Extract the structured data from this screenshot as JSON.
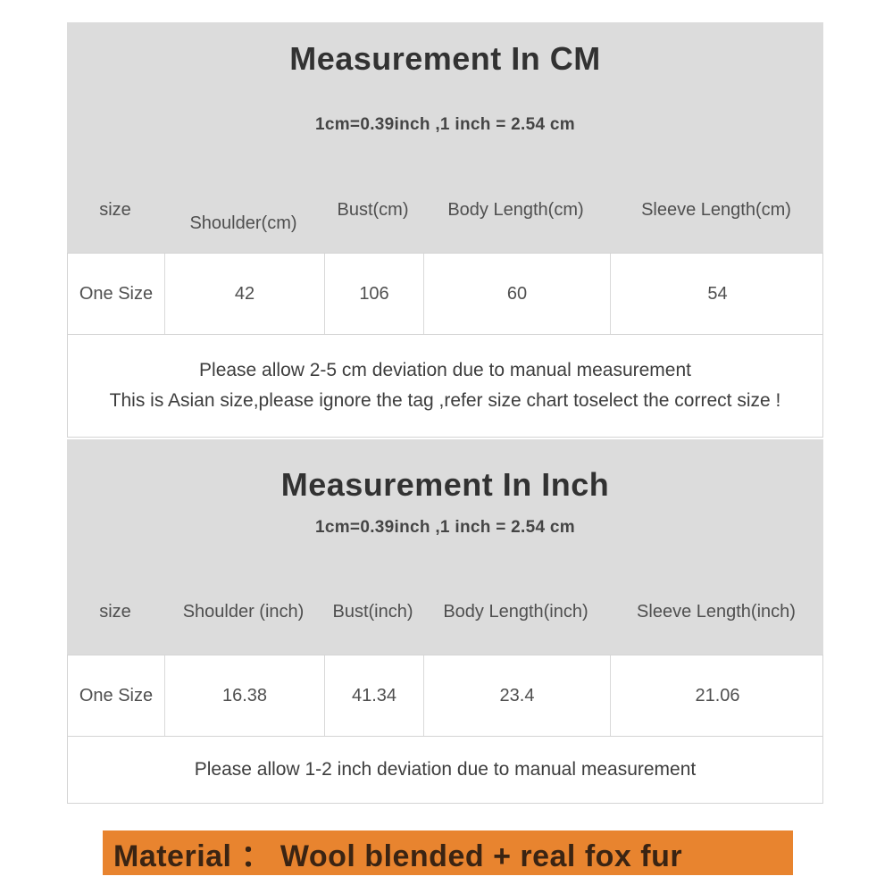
{
  "colors": {
    "section_background": "#dcdcdc",
    "table_border": "#d4d4d4",
    "title_text": "#323232",
    "body_text": "#4f4f4f",
    "material_background": "#e8842f",
    "material_text": "#3a2413"
  },
  "cm_section": {
    "title": "Measurement In CM",
    "subtitle": "1cm=0.39inch ,1 inch = 2.54 cm",
    "table": {
      "headers": [
        "size",
        "Shoulder(cm)",
        "Bust(cm)",
        "Body Length(cm)",
        "Sleeve Length(cm)"
      ],
      "rows": [
        [
          "One Size",
          "42",
          "106",
          "60",
          "54"
        ]
      ]
    },
    "notes": [
      "Please allow 2-5 cm deviation due to manual measurement",
      "This is Asian size,please ignore the tag ,refer size chart toselect the correct size !"
    ]
  },
  "inch_section": {
    "title": "Measurement In Inch",
    "subtitle": "1cm=0.39inch ,1 inch = 2.54 cm",
    "table": {
      "headers": [
        "size",
        "Shoulder (inch)",
        "Bust(inch)",
        "Body Length(inch)",
        "Sleeve Length(inch)"
      ],
      "rows": [
        [
          "One Size",
          "16.38",
          "41.34",
          "23.4",
          "21.06"
        ]
      ]
    },
    "notes": [
      "Please allow 1-2 inch deviation due to manual measurement"
    ]
  },
  "material": {
    "label": "Material ： Wool blended + real fox fur"
  }
}
